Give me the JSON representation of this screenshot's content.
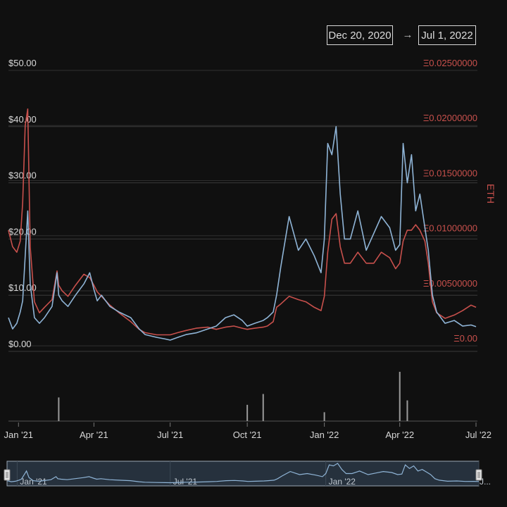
{
  "range": {
    "start": "Dec 20, 2020",
    "arrow": "→",
    "end": "Jul 1, 2022"
  },
  "chart_data": {
    "type": "line",
    "title": "",
    "left_axis": {
      "label": "",
      "ticks": [
        "$0.00",
        "$10.00",
        "$20.00",
        "$30.00",
        "$40.00",
        "$50.00"
      ],
      "range": [
        0,
        50
      ]
    },
    "right_axis": {
      "label": "ETH",
      "ticks": [
        "Ξ0.00",
        "Ξ0.00500000",
        "Ξ0.01000000",
        "Ξ0.01500000",
        "Ξ0.02000000",
        "Ξ0.02500000"
      ],
      "range": [
        -0.0005,
        0.025
      ]
    },
    "x_ticks": [
      "Jan '21",
      "Apr '21",
      "Jul '21",
      "Oct '21",
      "Jan '22",
      "Apr '22",
      "Jul '22"
    ],
    "navigator_ticks": [
      "Jan '21",
      "Jul '21",
      "Jan '22",
      "J..."
    ],
    "x_range": [
      "2020-12-20",
      "2022-07-01"
    ],
    "series": [
      {
        "axis": "left",
        "color": "#8fb4d6",
        "x": [
          "2020-12-20",
          "2020-12-25",
          "2020-12-30",
          "2021-01-03",
          "2021-01-06",
          "2021-01-09",
          "2021-01-12",
          "2021-01-15",
          "2021-01-20",
          "2021-01-26",
          "2021-02-01",
          "2021-02-10",
          "2021-02-16",
          "2021-02-18",
          "2021-02-22",
          "2021-03-01",
          "2021-03-10",
          "2021-03-20",
          "2021-03-27",
          "2021-04-01",
          "2021-04-05",
          "2021-04-10",
          "2021-04-20",
          "2021-05-01",
          "2021-05-15",
          "2021-05-25",
          "2021-06-01",
          "2021-06-15",
          "2021-06-25",
          "2021-07-01",
          "2021-07-10",
          "2021-07-20",
          "2021-08-01",
          "2021-08-15",
          "2021-08-25",
          "2021-09-05",
          "2021-09-15",
          "2021-09-25",
          "2021-10-01",
          "2021-10-10",
          "2021-10-20",
          "2021-10-25",
          "2021-11-01",
          "2021-11-05",
          "2021-11-10",
          "2021-11-20",
          "2021-12-01",
          "2021-12-10",
          "2021-12-20",
          "2021-12-28",
          "2022-01-01",
          "2022-01-05",
          "2022-01-10",
          "2022-01-15",
          "2022-01-20",
          "2022-01-25",
          "2022-02-01",
          "2022-02-10",
          "2022-02-20",
          "2022-03-01",
          "2022-03-10",
          "2022-03-20",
          "2022-03-27",
          "2022-04-01",
          "2022-04-05",
          "2022-04-10",
          "2022-04-15",
          "2022-04-20",
          "2022-04-25",
          "2022-05-01",
          "2022-05-05",
          "2022-05-10",
          "2022-05-15",
          "2022-05-25",
          "2022-06-05",
          "2022-06-15",
          "2022-06-25",
          "2022-07-01"
        ],
        "values": [
          6,
          4,
          5,
          7,
          9,
          17,
          25,
          12,
          6,
          5,
          6,
          8,
          14,
          10,
          9,
          8,
          10,
          12,
          14,
          11,
          9,
          10,
          8,
          7,
          6,
          4,
          3,
          2.5,
          2.2,
          2,
          2.5,
          3,
          3.3,
          4,
          4.5,
          6,
          6.5,
          5.5,
          4.5,
          5,
          5.5,
          6,
          7,
          10,
          15,
          24,
          18,
          20,
          17,
          14,
          20,
          37,
          35,
          40,
          28,
          20,
          20,
          25,
          18,
          21,
          24,
          22,
          18,
          19,
          37,
          30,
          35,
          25,
          28,
          22,
          18,
          10,
          7,
          5,
          5.5,
          4.5,
          4.7,
          4.4
        ]
      },
      {
        "axis": "right",
        "color": "#c8504c",
        "x": [
          "2020-12-20",
          "2020-12-25",
          "2020-12-30",
          "2021-01-03",
          "2021-01-06",
          "2021-01-09",
          "2021-01-12",
          "2021-01-15",
          "2021-01-20",
          "2021-01-26",
          "2021-02-01",
          "2021-02-10",
          "2021-02-16",
          "2021-02-18",
          "2021-02-22",
          "2021-03-01",
          "2021-03-10",
          "2021-03-20",
          "2021-03-27",
          "2021-04-01",
          "2021-04-05",
          "2021-04-10",
          "2021-04-20",
          "2021-05-01",
          "2021-05-15",
          "2021-05-25",
          "2021-06-01",
          "2021-06-15",
          "2021-06-25",
          "2021-07-01",
          "2021-07-10",
          "2021-07-20",
          "2021-08-01",
          "2021-08-15",
          "2021-08-25",
          "2021-09-05",
          "2021-09-15",
          "2021-09-25",
          "2021-10-01",
          "2021-10-10",
          "2021-10-20",
          "2021-10-25",
          "2021-11-01",
          "2021-11-05",
          "2021-11-10",
          "2021-11-20",
          "2021-12-01",
          "2021-12-10",
          "2021-12-20",
          "2021-12-28",
          "2022-01-01",
          "2022-01-05",
          "2022-01-10",
          "2022-01-15",
          "2022-01-20",
          "2022-01-25",
          "2022-02-01",
          "2022-02-10",
          "2022-02-20",
          "2022-03-01",
          "2022-03-10",
          "2022-03-20",
          "2022-03-27",
          "2022-04-01",
          "2022-04-05",
          "2022-04-10",
          "2022-04-15",
          "2022-04-20",
          "2022-04-25",
          "2022-05-01",
          "2022-05-05",
          "2022-05-10",
          "2022-05-15",
          "2022-05-25",
          "2022-06-05",
          "2022-06-15",
          "2022-06-25",
          "2022-07-01"
        ],
        "values": [
          0.0105,
          0.009,
          0.0085,
          0.0095,
          0.013,
          0.02,
          0.0215,
          0.009,
          0.004,
          0.003,
          0.0035,
          0.0042,
          0.0068,
          0.0055,
          0.005,
          0.0045,
          0.0055,
          0.0065,
          0.0062,
          0.0055,
          0.0049,
          0.0045,
          0.0037,
          0.003,
          0.0022,
          0.0015,
          0.0012,
          0.001,
          0.001,
          0.001,
          0.0012,
          0.0014,
          0.0016,
          0.0017,
          0.0015,
          0.0017,
          0.0018,
          0.0016,
          0.0015,
          0.0016,
          0.0017,
          0.0018,
          0.0022,
          0.0035,
          0.0038,
          0.0045,
          0.0042,
          0.004,
          0.0035,
          0.0032,
          0.0045,
          0.0085,
          0.0115,
          0.012,
          0.009,
          0.0075,
          0.0075,
          0.0085,
          0.0075,
          0.0075,
          0.0085,
          0.008,
          0.007,
          0.0075,
          0.0095,
          0.0105,
          0.0105,
          0.011,
          0.0105,
          0.0095,
          0.0075,
          0.004,
          0.003,
          0.0025,
          0.0028,
          0.0032,
          0.0037,
          0.0035
        ]
      }
    ],
    "volume": {
      "color": "#9a9a9a",
      "x": [
        "2021-02-18",
        "2021-10-01",
        "2021-10-20",
        "2022-01-01",
        "2022-04-01",
        "2022-04-10"
      ],
      "values": [
        0.48,
        0.33,
        0.55,
        0.18,
        1.0,
        0.42
      ]
    }
  }
}
